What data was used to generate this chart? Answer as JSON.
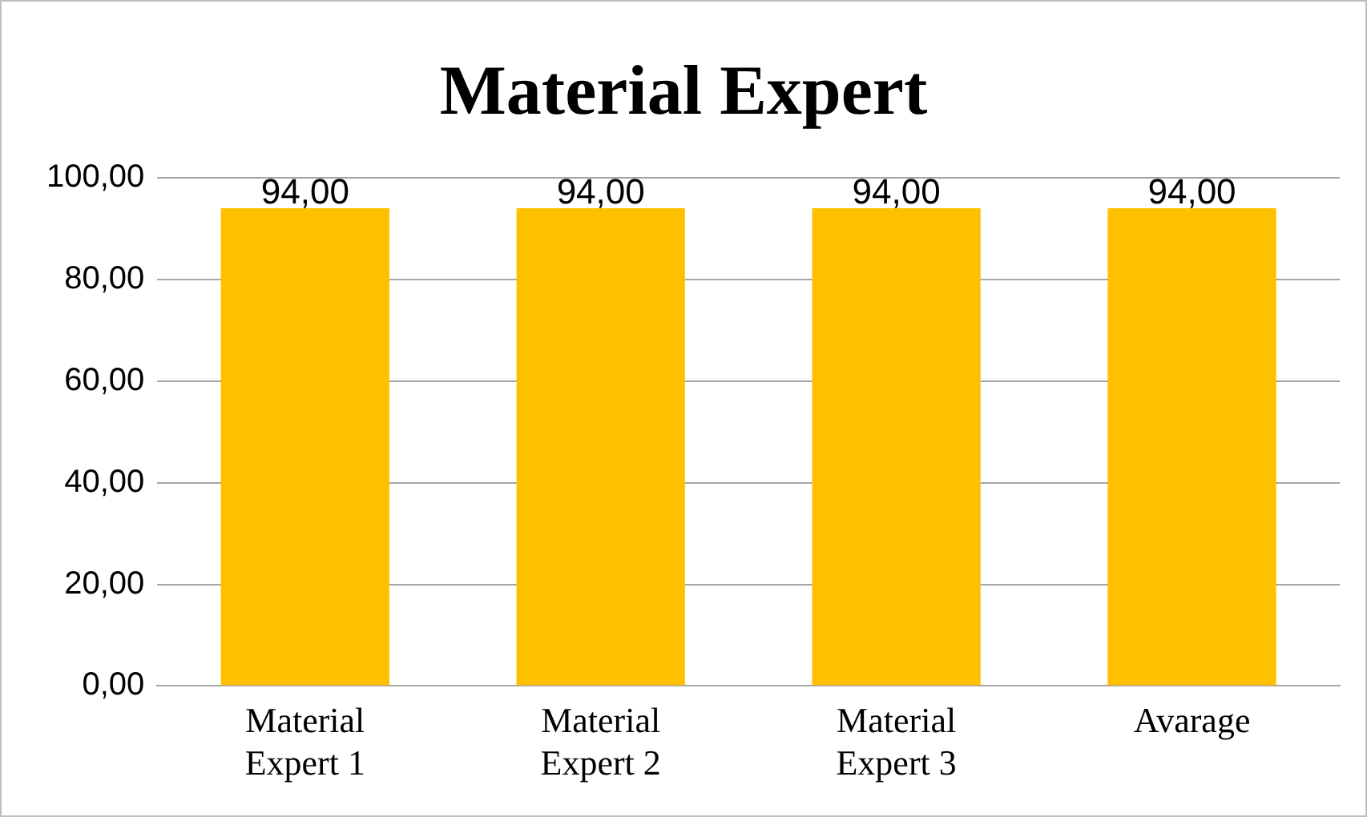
{
  "chart_data": {
    "type": "bar",
    "title": "Material Expert",
    "categories": [
      "Material Expert 1",
      "Material Expert 2",
      "Material Expert 3",
      "Avarage"
    ],
    "values": [
      94,
      94,
      94,
      94
    ],
    "color": "#ffc000",
    "value_labels": [
      "94,00",
      "94,00",
      "94,00",
      "94,00"
    ],
    "ylim": [
      0,
      100
    ],
    "yticks": [
      {
        "value": 0,
        "label": "0,00"
      },
      {
        "value": 20,
        "label": "20,00"
      },
      {
        "value": 40,
        "label": "40,00"
      },
      {
        "value": 60,
        "label": "60,00"
      },
      {
        "value": 80,
        "label": "80,00"
      },
      {
        "value": 100,
        "label": "100,00"
      }
    ],
    "grid": "y",
    "legend": false
  }
}
